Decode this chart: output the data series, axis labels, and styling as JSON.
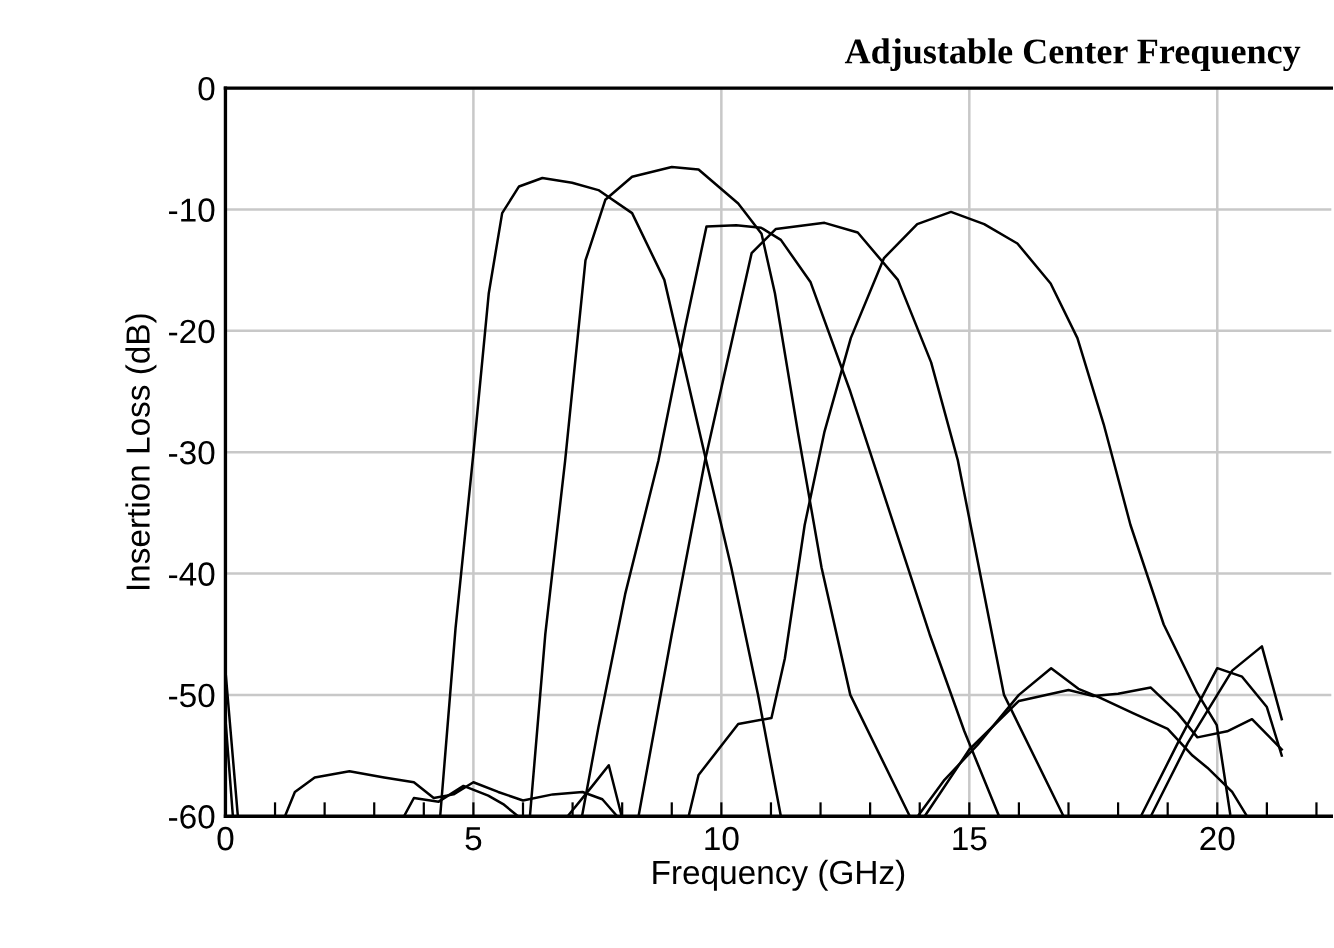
{
  "chart_data": {
    "type": "line",
    "title": "Adjustable Center Frequency",
    "xlabel": "Frequency (GHz)",
    "ylabel": "Insertion Loss (dB)",
    "xlim": [
      0,
      22.3
    ],
    "ylim": [
      -60,
      0
    ],
    "xticks": [
      0,
      {
        "value": 1,
        "label": null
      },
      {
        "value": 2,
        "label": null
      },
      {
        "value": 3,
        "label": null
      },
      {
        "value": 4,
        "label": null
      },
      5,
      {
        "value": 6,
        "label": null
      },
      {
        "value": 7,
        "label": null
      },
      {
        "value": 8,
        "label": null
      },
      {
        "value": 9,
        "label": null
      },
      10,
      {
        "value": 11,
        "label": null
      },
      {
        "value": 12,
        "label": null
      },
      {
        "value": 13,
        "label": null
      },
      {
        "value": 14,
        "label": null
      },
      15,
      {
        "value": 16,
        "label": null
      },
      {
        "value": 17,
        "label": null
      },
      {
        "value": 18,
        "label": null
      },
      {
        "value": 19,
        "label": null
      },
      20,
      {
        "value": 21,
        "label": null
      },
      {
        "value": 22,
        "label": null
      }
    ],
    "yticks": [
      -60,
      -50,
      -40,
      -30,
      -20,
      -10,
      0
    ],
    "grid": true,
    "legend": false,
    "line_style": "solid",
    "marker": "none",
    "series": [
      {
        "color": "#000000",
        "x": [
          0,
          0.25,
          4.33,
          4.64,
          5.0,
          5.31,
          5.58,
          5.92,
          6.39,
          6.99,
          7.52,
          8.2,
          8.85,
          9.66,
          10.2,
          10.74,
          11.2,
          13.96,
          14.5,
          15.17,
          16.0,
          16.65,
          17.2,
          17.62,
          18.3,
          19.0,
          19.5,
          19.8,
          20.3,
          20.6
        ],
        "values": [
          -48,
          -60,
          -60,
          -44.5,
          -30.1,
          -16.9,
          -10.3,
          -8.1,
          -7.4,
          -7.8,
          -8.4,
          -10.3,
          -15.8,
          -30.1,
          -39.5,
          -50,
          -60,
          -60,
          -57,
          -54.1,
          -50,
          -47.8,
          -49.5,
          -50.2,
          -51.5,
          -52.8,
          -55,
          -56,
          -58,
          -60
        ]
      },
      {
        "color": "#000000",
        "x": [
          0,
          0.15,
          6.14,
          6.45,
          6.85,
          7.26,
          7.66,
          8.2,
          9.0,
          9.54,
          10.34,
          10.81,
          11.08,
          11.55,
          12.02,
          12.6,
          13.8,
          14.1,
          15.0,
          16.0,
          17.0,
          17.5,
          18.0,
          18.66,
          19.2,
          19.6,
          20.2,
          20.7,
          21.3
        ],
        "values": [
          -52,
          -60,
          -60,
          -45,
          -30.7,
          -14.2,
          -9.2,
          -7.3,
          -6.5,
          -6.7,
          -9.5,
          -12,
          -16.9,
          -28.5,
          -39.5,
          -50,
          -60,
          -60,
          -54.5,
          -50.5,
          -49.6,
          -50.1,
          -49.9,
          -49.4,
          -51.5,
          -53.5,
          -53,
          -52,
          -54.5
        ]
      },
      {
        "color": "#000000",
        "x": [
          7.19,
          7.52,
          8.06,
          8.73,
          9.27,
          9.7,
          10.3,
          10.8,
          11.2,
          11.8,
          12.6,
          13.4,
          14.2,
          14.9,
          15.6,
          18.46,
          19.2,
          20.0,
          20.5,
          21.0,
          21.3
        ],
        "values": [
          -60,
          -52.7,
          -41.7,
          -30.7,
          -19.7,
          -11.4,
          -11.3,
          -11.5,
          -12.5,
          -16,
          -25,
          -35,
          -45,
          -53,
          -60,
          -60,
          -54,
          -47.8,
          -48.5,
          -51,
          -55
        ]
      },
      {
        "color": "#000000",
        "x": [
          1.2,
          1.4,
          1.8,
          2.5,
          3.2,
          3.8,
          4.2,
          4.6,
          5.0,
          5.5,
          6.0,
          6.6,
          7.2,
          7.6,
          7.9,
          8.33,
          9.0,
          9.67,
          10.61,
          11.1,
          12.08,
          12.75,
          13.56,
          14.23,
          14.77,
          15.3,
          15.7,
          16.9,
          18.66,
          19.4,
          20.3,
          20.9,
          21.3
        ],
        "values": [
          -60,
          -58,
          -56.8,
          -56.3,
          -56.8,
          -57.2,
          -58.5,
          -58.2,
          -57.2,
          -58,
          -58.7,
          -58.2,
          -58,
          -58.6,
          -60,
          -60,
          -45,
          -30.7,
          -13.6,
          -11.6,
          -11.1,
          -11.9,
          -15.8,
          -22.6,
          -30.7,
          -41.7,
          -50,
          -60,
          -60,
          -54,
          -48,
          -46,
          -52
        ]
      },
      {
        "color": "#000000",
        "x": [
          3.6,
          3.8,
          4.3,
          4.8,
          5.3,
          5.6,
          5.9,
          6.9,
          7.4,
          7.73,
          7.99,
          9.34,
          9.54,
          10.34,
          11.01,
          11.28,
          11.68,
          12.08,
          12.61,
          13.28,
          13.95,
          14.63,
          15.3,
          15.97,
          16.64,
          17.18,
          17.71,
          18.25,
          18.92,
          19.59,
          19.99,
          20.26
        ],
        "values": [
          -60,
          -58.5,
          -58.8,
          -57.5,
          -58.3,
          -59,
          -60,
          -60,
          -57.5,
          -55.8,
          -60,
          -60,
          -56.6,
          -52.4,
          -51.9,
          -47,
          -36,
          -28.3,
          -20.6,
          -14,
          -11.2,
          -10.2,
          -11.2,
          -12.8,
          -16.1,
          -20.6,
          -27.7,
          -36,
          -44.2,
          -49.8,
          -52.5,
          -59.8
        ]
      }
    ]
  }
}
